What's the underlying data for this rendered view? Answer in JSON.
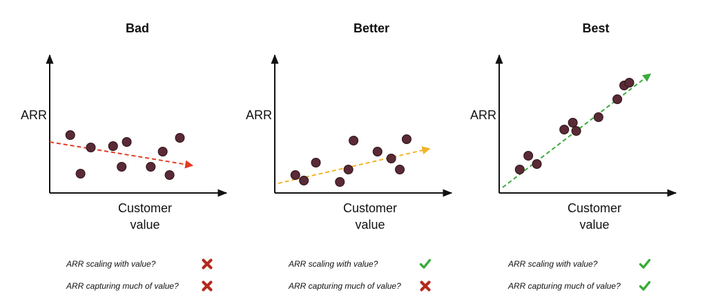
{
  "chart_data": [
    {
      "type": "scatter",
      "title": "Bad",
      "ylabel": "ARR",
      "xlabel": "Customer value",
      "xlabel_lines": [
        "Customer",
        "value"
      ],
      "xlim": [
        0,
        100
      ],
      "ylim": [
        0,
        100
      ],
      "grid": false,
      "points": [
        {
          "x": 12,
          "y": 42
        },
        {
          "x": 18,
          "y": 14
        },
        {
          "x": 24,
          "y": 33
        },
        {
          "x": 37,
          "y": 34
        },
        {
          "x": 42,
          "y": 19
        },
        {
          "x": 45,
          "y": 37
        },
        {
          "x": 59,
          "y": 19
        },
        {
          "x": 66,
          "y": 30
        },
        {
          "x": 70,
          "y": 13
        },
        {
          "x": 76,
          "y": 40
        }
      ],
      "trend": {
        "color": "#e23b21",
        "from": [
          0,
          37
        ],
        "to": [
          83,
          20
        ]
      }
    },
    {
      "type": "scatter",
      "title": "Better",
      "ylabel": "ARR",
      "xlabel": "Customer value",
      "xlabel_lines": [
        "Customer",
        "value"
      ],
      "xlim": [
        0,
        100
      ],
      "ylim": [
        0,
        100
      ],
      "grid": false,
      "points": [
        {
          "x": 12,
          "y": 13
        },
        {
          "x": 17,
          "y": 9
        },
        {
          "x": 24,
          "y": 22
        },
        {
          "x": 38,
          "y": 8
        },
        {
          "x": 43,
          "y": 17
        },
        {
          "x": 46,
          "y": 38
        },
        {
          "x": 60,
          "y": 30
        },
        {
          "x": 68,
          "y": 25
        },
        {
          "x": 73,
          "y": 17
        },
        {
          "x": 77,
          "y": 39
        }
      ],
      "trend": {
        "color": "#f2b426",
        "from": [
          2,
          7
        ],
        "to": [
          90,
          32
        ]
      }
    },
    {
      "type": "scatter",
      "title": "Best",
      "ylabel": "ARR",
      "xlabel": "Customer value",
      "xlabel_lines": [
        "Customer",
        "value"
      ],
      "xlim": [
        0,
        100
      ],
      "ylim": [
        0,
        100
      ],
      "grid": false,
      "points": [
        {
          "x": 12,
          "y": 17
        },
        {
          "x": 17,
          "y": 27
        },
        {
          "x": 22,
          "y": 21
        },
        {
          "x": 38,
          "y": 46
        },
        {
          "x": 43,
          "y": 51
        },
        {
          "x": 45,
          "y": 45
        },
        {
          "x": 58,
          "y": 55
        },
        {
          "x": 69,
          "y": 68
        },
        {
          "x": 73,
          "y": 78
        },
        {
          "x": 76,
          "y": 80
        }
      ],
      "trend": {
        "color": "#3aab3a",
        "from": [
          2,
          4
        ],
        "to": [
          88,
          86
        ]
      }
    }
  ],
  "criteria": [
    {
      "items": [
        {
          "label": "ARR scaling with value?",
          "result": "cross"
        },
        {
          "label": "ARR capturing much of value?",
          "result": "cross"
        }
      ]
    },
    {
      "items": [
        {
          "label": "ARR scaling with value?",
          "result": "check"
        },
        {
          "label": "ARR capturing much of value?",
          "result": "cross"
        }
      ]
    },
    {
      "items": [
        {
          "label": "ARR scaling with value?",
          "result": "check"
        },
        {
          "label": "ARR capturing much of value?",
          "result": "check"
        }
      ]
    }
  ],
  "colors": {
    "point_fill": "#5a2a36",
    "point_stroke": "#2b1016",
    "axis": "#111111",
    "cross": "#b52a1c",
    "check": "#3aab3a"
  },
  "icons": {
    "cross": "cross-icon",
    "check": "check-icon"
  }
}
